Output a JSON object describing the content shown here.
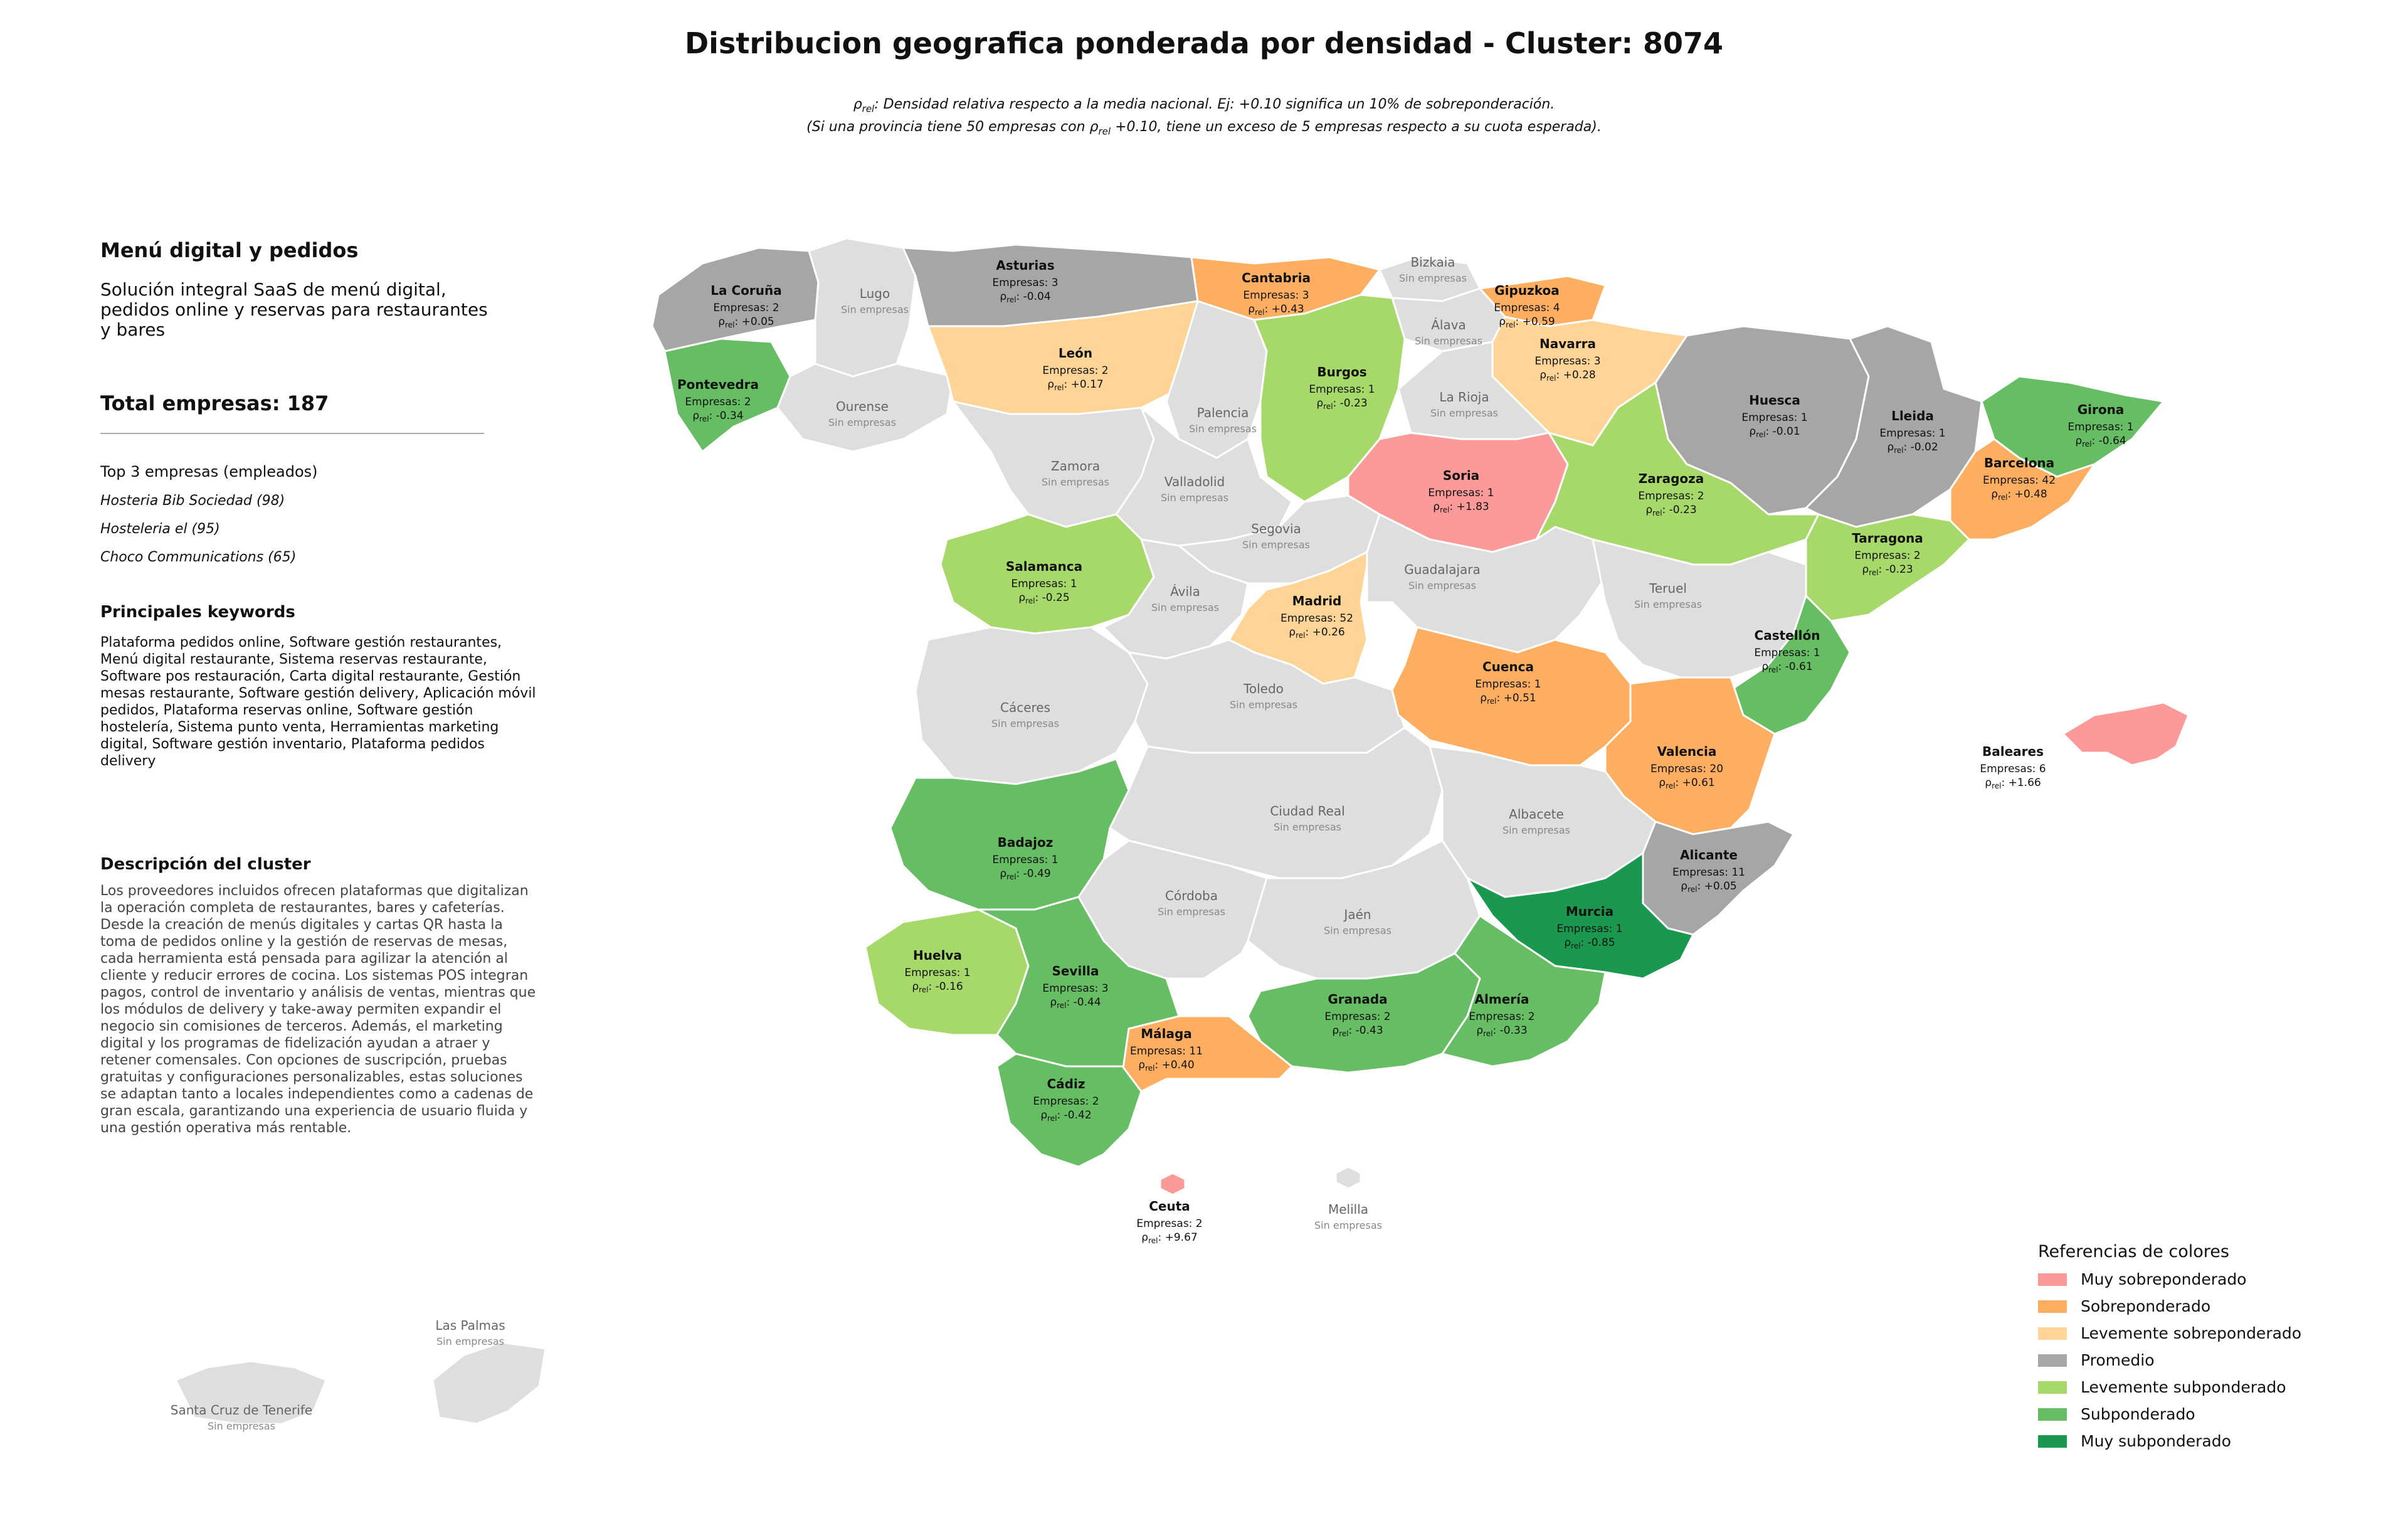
{
  "title": "Distribucion geografica ponderada por densidad - Cluster: 8074",
  "subtitle": {
    "line1_symbol": "ρ",
    "line1_sub": "rel",
    "line1_rest": ": Densidad relativa respecto a la media nacional. Ej: +0.10 significa un 10% de sobreponderación.",
    "line2_pre": "(Si una provincia tiene 50 empresas con ρ",
    "line2_sub": "rel",
    "line2_rest": " +0.10, tiene un exceso de 5 empresas respecto a su cuota esperada)."
  },
  "sidebar": {
    "heading": "Menú digital y pedidos",
    "description": "Solución integral SaaS de menú digital, pedidos online y reservas para restaurantes y bares",
    "total": "Total empresas: 187",
    "top_label": "Top 3 empresas (empleados)",
    "top_companies": [
      "Hosteria Bib Sociedad (98)",
      "Hosteleria el (95)",
      "Choco Communications (65)"
    ],
    "keywords_heading": "Principales keywords",
    "keywords": "Plataforma pedidos online, Software gestión restaurantes, Menú digital restaurante, Sistema reservas restaurante, Software pos restauración, Carta digital restaurante, Gestión mesas restaurante, Software gestión delivery, Aplicación móvil pedidos, Plataforma reservas online, Software gestión hostelería, Sistema punto venta, Herramientas marketing digital, Software gestión inventario, Plataforma pedidos delivery",
    "cluster_heading": "Descripción del cluster",
    "cluster_text": "Los proveedores incluidos ofrecen plataformas que digitalizan la operación completa de restaurantes, bares y cafeterías. Desde la creación de menús digitales y cartas QR hasta la toma de pedidos online y la gestión de reservas de mesas, cada herramienta está pensada para agilizar la atención al cliente y reducir errores de cocina. Los sistemas POS integran pagos, control de inventario y análisis de ventas, mientras que los módulos de delivery y take-away permiten expandir el negocio sin comisiones de terceros. Además, el marketing digital y los programas de fidelización ayudan a atraer y retener comensales. Con opciones de suscripción, pruebas gratuitas y configuraciones personalizables, estas soluciones se adaptan tanto a locales independientes como a cadenas de gran escala, garantizando una experiencia de usuario fluida y una gestión operativa más rentable."
  },
  "map": {
    "empty_label": "Sin empresas",
    "count_prefix": "Empresas: ",
    "rho_symbol": "ρ",
    "rho_sub": "rel",
    "provinces": [
      {
        "name": "La Coruña",
        "count": 2,
        "rho": "+0.05",
        "cat": "avg"
      },
      {
        "name": "Lugo",
        "count": null,
        "rho": null,
        "cat": "none"
      },
      {
        "name": "Asturias",
        "count": 3,
        "rho": "-0.04",
        "cat": "avg"
      },
      {
        "name": "Cantabria",
        "count": 3,
        "rho": "+0.43",
        "cat": "over"
      },
      {
        "name": "Bizkaia",
        "count": null,
        "rho": null,
        "cat": "none"
      },
      {
        "name": "Gipuzkoa",
        "count": 4,
        "rho": "+0.59",
        "cat": "over"
      },
      {
        "name": "Álava",
        "count": null,
        "rho": null,
        "cat": "none"
      },
      {
        "name": "Navarra",
        "count": 3,
        "rho": "+0.28",
        "cat": "slight_over"
      },
      {
        "name": "Pontevedra",
        "count": 2,
        "rho": "-0.34",
        "cat": "under"
      },
      {
        "name": "Ourense",
        "count": null,
        "rho": null,
        "cat": "none"
      },
      {
        "name": "León",
        "count": 2,
        "rho": "+0.17",
        "cat": "slight_over"
      },
      {
        "name": "Palencia",
        "count": null,
        "rho": null,
        "cat": "none"
      },
      {
        "name": "Burgos",
        "count": 1,
        "rho": "-0.23",
        "cat": "slight_under"
      },
      {
        "name": "La Rioja",
        "count": null,
        "rho": null,
        "cat": "none"
      },
      {
        "name": "Huesca",
        "count": 1,
        "rho": "-0.01",
        "cat": "avg"
      },
      {
        "name": "Lleida",
        "count": 1,
        "rho": "-0.02",
        "cat": "avg"
      },
      {
        "name": "Girona",
        "count": 1,
        "rho": "-0.64",
        "cat": "under"
      },
      {
        "name": "Barcelona",
        "count": 42,
        "rho": "+0.48",
        "cat": "over"
      },
      {
        "name": "Zamora",
        "count": null,
        "rho": null,
        "cat": "none"
      },
      {
        "name": "Valladolid",
        "count": null,
        "rho": null,
        "cat": "none"
      },
      {
        "name": "Soria",
        "count": 1,
        "rho": "+1.83",
        "cat": "very_over"
      },
      {
        "name": "Zaragoza",
        "count": 2,
        "rho": "-0.23",
        "cat": "slight_under"
      },
      {
        "name": "Tarragona",
        "count": 2,
        "rho": "-0.23",
        "cat": "slight_under"
      },
      {
        "name": "Salamanca",
        "count": 1,
        "rho": "-0.25",
        "cat": "slight_under"
      },
      {
        "name": "Segovia",
        "count": null,
        "rho": null,
        "cat": "none"
      },
      {
        "name": "Ávila",
        "count": null,
        "rho": null,
        "cat": "none"
      },
      {
        "name": "Madrid",
        "count": 52,
        "rho": "+0.26",
        "cat": "slight_over"
      },
      {
        "name": "Guadalajara",
        "count": null,
        "rho": null,
        "cat": "none"
      },
      {
        "name": "Teruel",
        "count": null,
        "rho": null,
        "cat": "none"
      },
      {
        "name": "Castellón",
        "count": 1,
        "rho": "-0.61",
        "cat": "under"
      },
      {
        "name": "Cáceres",
        "count": null,
        "rho": null,
        "cat": "none"
      },
      {
        "name": "Toledo",
        "count": null,
        "rho": null,
        "cat": "none"
      },
      {
        "name": "Cuenca",
        "count": 1,
        "rho": "+0.51",
        "cat": "over"
      },
      {
        "name": "Valencia",
        "count": 20,
        "rho": "+0.61",
        "cat": "over"
      },
      {
        "name": "Baleares",
        "count": 6,
        "rho": "+1.66",
        "cat": "very_over"
      },
      {
        "name": "Badajoz",
        "count": 1,
        "rho": "-0.49",
        "cat": "under"
      },
      {
        "name": "Ciudad Real",
        "count": null,
        "rho": null,
        "cat": "none"
      },
      {
        "name": "Albacete",
        "count": null,
        "rho": null,
        "cat": "none"
      },
      {
        "name": "Alicante",
        "count": 11,
        "rho": "+0.05",
        "cat": "avg"
      },
      {
        "name": "Córdoba",
        "count": null,
        "rho": null,
        "cat": "none"
      },
      {
        "name": "Jaén",
        "count": null,
        "rho": null,
        "cat": "none"
      },
      {
        "name": "Murcia",
        "count": 1,
        "rho": "-0.85",
        "cat": "very_under"
      },
      {
        "name": "Huelva",
        "count": 1,
        "rho": "-0.16",
        "cat": "slight_under"
      },
      {
        "name": "Sevilla",
        "count": 3,
        "rho": "-0.44",
        "cat": "under"
      },
      {
        "name": "Granada",
        "count": 2,
        "rho": "-0.43",
        "cat": "under"
      },
      {
        "name": "Almería",
        "count": 2,
        "rho": "-0.33",
        "cat": "under"
      },
      {
        "name": "Málaga",
        "count": 11,
        "rho": "+0.40",
        "cat": "over"
      },
      {
        "name": "Cádiz",
        "count": 2,
        "rho": "-0.42",
        "cat": "under"
      },
      {
        "name": "Ceuta",
        "count": 2,
        "rho": "+9.67",
        "cat": "very_over"
      },
      {
        "name": "Melilla",
        "count": null,
        "rho": null,
        "cat": "none"
      },
      {
        "name": "Las Palmas",
        "count": null,
        "rho": null,
        "cat": "none"
      },
      {
        "name": "Santa Cruz de Tenerife",
        "count": null,
        "rho": null,
        "cat": "none"
      }
    ]
  },
  "legend": {
    "title": "Referencias de colores",
    "items": [
      {
        "key": "very_over",
        "label": "Muy sobreponderado",
        "color": "#fb9a99"
      },
      {
        "key": "over",
        "label": "Sobreponderado",
        "color": "#fdae61"
      },
      {
        "key": "slight_over",
        "label": "Levemente sobreponderado",
        "color": "#fed597"
      },
      {
        "key": "avg",
        "label": "Promedio",
        "color": "#a6a6a6"
      },
      {
        "key": "slight_under",
        "label": "Levemente subponderado",
        "color": "#a6d96a"
      },
      {
        "key": "under",
        "label": "Subponderado",
        "color": "#66bd63"
      },
      {
        "key": "very_under",
        "label": "Muy subponderado",
        "color": "#1a9850"
      }
    ],
    "none_color": "#dedede"
  }
}
